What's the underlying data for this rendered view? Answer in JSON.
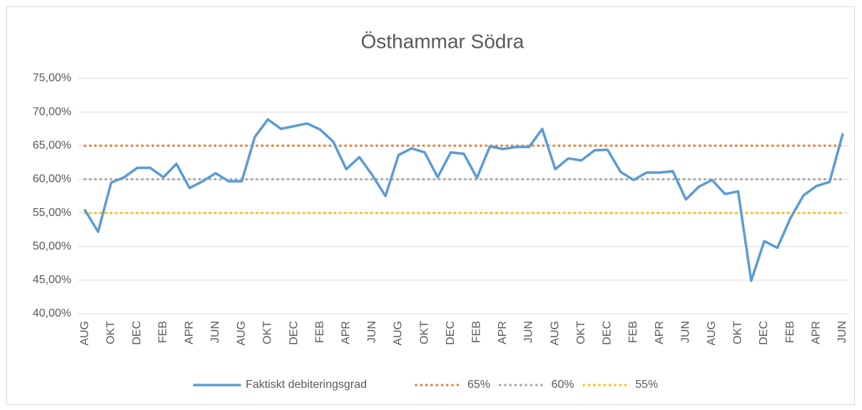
{
  "chart_data": {
    "type": "line",
    "title": "Östhammar Södra",
    "categories": [
      "AUG",
      null,
      "OKT",
      null,
      "DEC",
      null,
      "FEB",
      null,
      "APR",
      null,
      "JUN",
      null,
      "AUG",
      null,
      "OKT",
      null,
      "DEC",
      null,
      "FEB",
      null,
      "APR",
      null,
      "JUN",
      null,
      "AUG",
      null,
      "OKT",
      null,
      "DEC",
      null,
      "FEB",
      null,
      "APR",
      null,
      "JUN",
      null,
      "AUG",
      null,
      "OKT",
      null,
      "DEC",
      null,
      "FEB",
      null,
      "APR",
      null,
      "JUN",
      null,
      "AUG",
      null,
      "OKT",
      null,
      "DEC",
      null,
      "FEB",
      null,
      "APR",
      null,
      "JUN"
    ],
    "series": [
      {
        "name": "Faktiskt debiteringsgrad",
        "color": "#5b9bd5",
        "style": "solid",
        "values": [
          55.4,
          52.2,
          59.5,
          60.3,
          61.7,
          61.7,
          60.3,
          62.3,
          58.7,
          59.7,
          60.9,
          59.7,
          59.7,
          66.3,
          68.9,
          67.5,
          67.9,
          68.3,
          67.4,
          65.6,
          61.5,
          63.3,
          60.6,
          57.5,
          63.6,
          64.6,
          64.0,
          60.3,
          64.0,
          63.8,
          60.2,
          64.9,
          64.5,
          64.8,
          64.8,
          67.5,
          61.5,
          63.1,
          62.8,
          64.3,
          64.4,
          61.1,
          59.9,
          61.0,
          61.0,
          61.2,
          57.0,
          58.9,
          59.9,
          57.8,
          58.2,
          44.9,
          50.8,
          49.8,
          54.2,
          57.6,
          59.0,
          59.6,
          66.7
        ]
      },
      {
        "name": "65%",
        "color": "#ed7d31",
        "style": "dotted",
        "values": [
          65,
          65,
          65,
          65,
          65,
          65,
          65,
          65,
          65,
          65,
          65,
          65,
          65,
          65,
          65,
          65,
          65,
          65,
          65,
          65,
          65,
          65,
          65,
          65,
          65,
          65,
          65,
          65,
          65,
          65,
          65,
          65,
          65,
          65,
          65,
          65,
          65,
          65,
          65,
          65,
          65,
          65,
          65,
          65,
          65,
          65,
          65,
          65,
          65,
          65,
          65,
          65,
          65,
          65,
          65,
          65,
          65,
          65,
          65
        ]
      },
      {
        "name": "60%",
        "color": "#a5a5a5",
        "style": "dotted",
        "values": [
          60,
          60,
          60,
          60,
          60,
          60,
          60,
          60,
          60,
          60,
          60,
          60,
          60,
          60,
          60,
          60,
          60,
          60,
          60,
          60,
          60,
          60,
          60,
          60,
          60,
          60,
          60,
          60,
          60,
          60,
          60,
          60,
          60,
          60,
          60,
          60,
          60,
          60,
          60,
          60,
          60,
          60,
          60,
          60,
          60,
          60,
          60,
          60,
          60,
          60,
          60,
          60,
          60,
          60,
          60,
          60,
          60,
          60,
          60
        ]
      },
      {
        "name": "55%",
        "color": "#ffc000",
        "style": "dotted",
        "values": [
          55,
          55,
          55,
          55,
          55,
          55,
          55,
          55,
          55,
          55,
          55,
          55,
          55,
          55,
          55,
          55,
          55,
          55,
          55,
          55,
          55,
          55,
          55,
          55,
          55,
          55,
          55,
          55,
          55,
          55,
          55,
          55,
          55,
          55,
          55,
          55,
          55,
          55,
          55,
          55,
          55,
          55,
          55,
          55,
          55,
          55,
          55,
          55,
          55,
          55,
          55,
          55,
          55,
          55,
          55,
          55,
          55,
          55,
          55
        ]
      }
    ],
    "ylim": [
      40,
      75
    ],
    "yticks": [
      {
        "value": 40,
        "label": "40,00%"
      },
      {
        "value": 45,
        "label": "45,00%"
      },
      {
        "value": 50,
        "label": "50,00%"
      },
      {
        "value": 55,
        "label": "55,00%"
      },
      {
        "value": 60,
        "label": "60,00%"
      },
      {
        "value": 65,
        "label": "65,00%"
      },
      {
        "value": 70,
        "label": "70,00%"
      },
      {
        "value": 75,
        "label": "75,00%"
      }
    ],
    "grid": true,
    "legend": "bottom"
  }
}
